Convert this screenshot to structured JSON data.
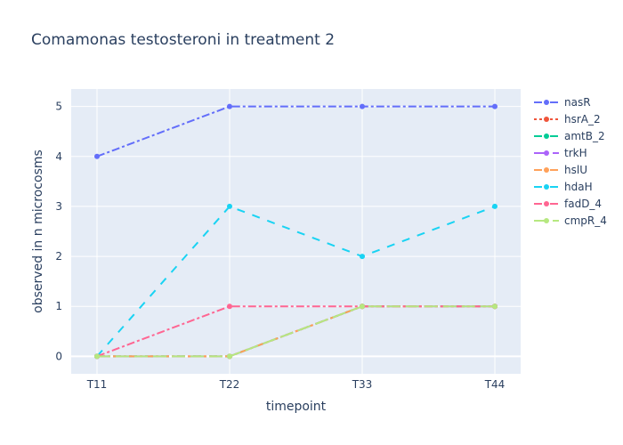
{
  "chart_data": {
    "type": "line",
    "title": "Comamonas testosteroni in treatment 2",
    "xlabel": "timepoint",
    "ylabel": "observed in n microcosms",
    "categories": [
      "T11",
      "T22",
      "T33",
      "T44"
    ],
    "ylim": [
      -0.35,
      5.35
    ],
    "yticks": [
      0,
      1,
      2,
      3,
      4,
      5
    ],
    "grid": true,
    "legend_position": "right",
    "background_color": "#e5ecf6",
    "series": [
      {
        "name": "nasR",
        "values": [
          4,
          5,
          5,
          5
        ],
        "color": "#636efa",
        "dash": "dashdot"
      },
      {
        "name": "hsrA_2",
        "values": [
          0,
          0,
          1,
          1
        ],
        "color": "#EF553B",
        "dash": "dot"
      },
      {
        "name": "amtB_2",
        "values": [
          0,
          0,
          1,
          1
        ],
        "color": "#00cc96",
        "dash": "dash"
      },
      {
        "name": "trkH",
        "values": [
          0,
          0,
          1,
          1
        ],
        "color": "#ab63fa",
        "dash": "longdash"
      },
      {
        "name": "hslU",
        "values": [
          0,
          0,
          1,
          1
        ],
        "color": "#FFA15A",
        "dash": "dashdot"
      },
      {
        "name": "hdaH",
        "values": [
          0,
          3,
          2,
          3
        ],
        "color": "#19d3f3",
        "dash": "dash"
      },
      {
        "name": "fadD_4",
        "values": [
          0,
          1,
          1,
          1
        ],
        "color": "#FF6692",
        "dash": "dashdot"
      },
      {
        "name": "cmpR_4",
        "values": [
          0,
          0,
          1,
          1
        ],
        "color": "#B6E880",
        "dash": "longdash"
      }
    ]
  }
}
